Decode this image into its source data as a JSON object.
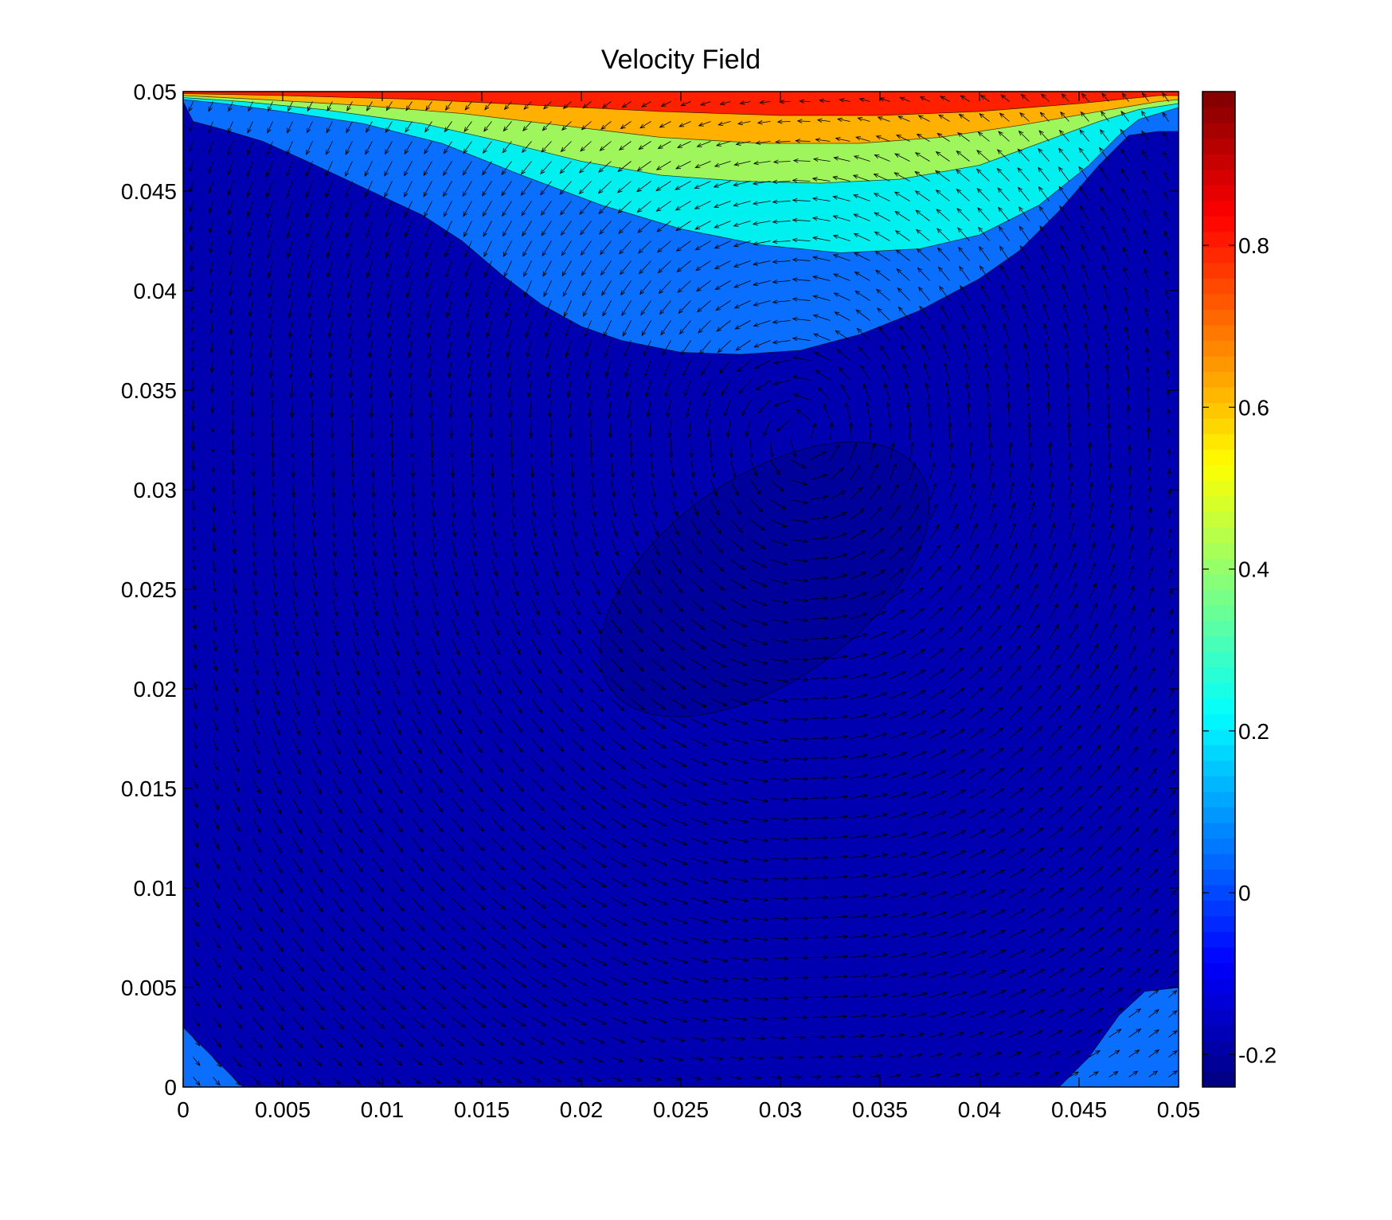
{
  "chart_data": {
    "type": "contourf+quiver",
    "title": "Velocity Field",
    "xlabel": "",
    "ylabel": "",
    "xlim": [
      0,
      0.05
    ],
    "ylim": [
      0,
      0.05
    ],
    "x_ticks": [
      "0",
      "0.005",
      "0.01",
      "0.015",
      "0.02",
      "0.025",
      "0.03",
      "0.035",
      "0.04",
      "0.045",
      "0.05"
    ],
    "y_ticks": [
      "0",
      "0.005",
      "0.01",
      "0.015",
      "0.02",
      "0.025",
      "0.03",
      "0.035",
      "0.04",
      "0.045",
      "0.05"
    ],
    "colorbar": {
      "range": [
        -0.24,
        0.99
      ],
      "ticks": [
        {
          "value": 0.8,
          "label": "0.8"
        },
        {
          "value": 0.6,
          "label": "0.6"
        },
        {
          "value": 0.4,
          "label": "0.4"
        },
        {
          "value": 0.2,
          "label": "0.2"
        },
        {
          "value": 0.0,
          "label": "0"
        },
        {
          "value": -0.2,
          "label": "-0.2"
        }
      ],
      "colormap": "jet"
    },
    "contour_levels": [
      {
        "level": 0.8,
        "color": "#ff2000"
      },
      {
        "level": 0.6,
        "color": "#ffb000"
      },
      {
        "level": 0.4,
        "color": "#9ef55c"
      },
      {
        "level": 0.2,
        "color": "#00f0f0"
      },
      {
        "level": 0.0,
        "color": "#0a6eff"
      },
      {
        "level": -0.2,
        "color": "#0000b0"
      },
      {
        "level": -0.24,
        "color": "#00009a"
      }
    ],
    "regions": [
      {
        "name": "top-lid-red",
        "min_value": 0.8,
        "y_range": [
          0.0487,
          0.05
        ]
      },
      {
        "name": "orange-band",
        "min_value": 0.6,
        "y_range": [
          0.0468,
          0.0493
        ]
      },
      {
        "name": "green-band",
        "min_value": 0.4,
        "y_range": [
          0.0446,
          0.049
        ]
      },
      {
        "name": "cyan-band",
        "min_value": 0.2,
        "y_range": [
          0.0416,
          0.0488
        ]
      },
      {
        "name": "blue-zone",
        "min_value": 0.0,
        "y_range": [
          0.0368,
          0.0495
        ]
      },
      {
        "name": "vortex-core",
        "min_value": -0.24,
        "center": [
          0.031,
          0.0255
        ]
      },
      {
        "name": "bottom-left-corner",
        "min_value": 0.0,
        "x_range": [
          0,
          0.003
        ]
      },
      {
        "name": "bottom-right-corner",
        "min_value": 0.0,
        "x_range": [
          0.044,
          0.05
        ]
      }
    ],
    "vortex_center": [
      0.031,
      0.0365
    ],
    "flow_direction": "counter-clockwise",
    "grid": false
  }
}
